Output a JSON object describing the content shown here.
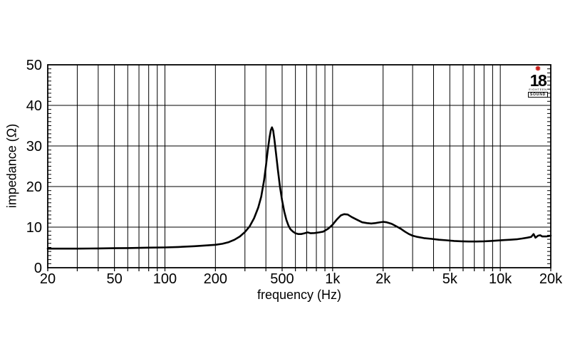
{
  "logo": {
    "star_glyph": "✹",
    "star_color": "#cc1f1a",
    "number": "18",
    "line1": "EIGHTEEN",
    "line2": "SOUND"
  },
  "chart_data": {
    "type": "line",
    "title": "",
    "xlabel": "frequency (Hz)",
    "ylabel": "impedance (Ω)",
    "x_scale": "log",
    "x_range": [
      20,
      20000
    ],
    "y_range": [
      0,
      50
    ],
    "x_ticks": [
      {
        "value": 20,
        "label": "20"
      },
      {
        "value": 50,
        "label": "50"
      },
      {
        "value": 100,
        "label": "100"
      },
      {
        "value": 200,
        "label": "200"
      },
      {
        "value": 500,
        "label": "500"
      },
      {
        "value": 1000,
        "label": "1k"
      },
      {
        "value": 2000,
        "label": "2k"
      },
      {
        "value": 5000,
        "label": "5k"
      },
      {
        "value": 10000,
        "label": "10k"
      },
      {
        "value": 20000,
        "label": "20k"
      }
    ],
    "y_ticks": [
      {
        "value": 0,
        "label": "0"
      },
      {
        "value": 10,
        "label": "10"
      },
      {
        "value": 20,
        "label": "20"
      },
      {
        "value": 30,
        "label": "30"
      },
      {
        "value": 40,
        "label": "40"
      },
      {
        "value": 50,
        "label": "50"
      }
    ],
    "y_minor_tick_step": 1,
    "grid": {
      "x_lines": "log-decade-all",
      "y_lines": "major-every-10"
    },
    "line_color": "#000000",
    "grid_color": "#000000",
    "series": [
      {
        "name": "impedance",
        "points": [
          [
            20,
            4.7
          ],
          [
            25,
            4.7
          ],
          [
            30,
            4.7
          ],
          [
            40,
            4.75
          ],
          [
            50,
            4.8
          ],
          [
            60,
            4.85
          ],
          [
            80,
            4.95
          ],
          [
            100,
            5.0
          ],
          [
            120,
            5.1
          ],
          [
            150,
            5.3
          ],
          [
            180,
            5.5
          ],
          [
            200,
            5.65
          ],
          [
            220,
            5.9
          ],
          [
            240,
            6.3
          ],
          [
            260,
            6.9
          ],
          [
            280,
            7.7
          ],
          [
            300,
            8.8
          ],
          [
            320,
            10.2
          ],
          [
            340,
            12.2
          ],
          [
            360,
            14.8
          ],
          [
            375,
            17.5
          ],
          [
            390,
            21.5
          ],
          [
            400,
            25.0
          ],
          [
            410,
            28.8
          ],
          [
            420,
            32.0
          ],
          [
            428,
            33.9
          ],
          [
            435,
            34.6
          ],
          [
            442,
            33.8
          ],
          [
            450,
            31.5
          ],
          [
            460,
            28.0
          ],
          [
            472,
            24.0
          ],
          [
            485,
            20.0
          ],
          [
            500,
            16.5
          ],
          [
            515,
            13.8
          ],
          [
            530,
            11.8
          ],
          [
            545,
            10.4
          ],
          [
            560,
            9.5
          ],
          [
            580,
            8.9
          ],
          [
            600,
            8.5
          ],
          [
            625,
            8.3
          ],
          [
            650,
            8.3
          ],
          [
            680,
            8.5
          ],
          [
            710,
            8.7
          ],
          [
            740,
            8.5
          ],
          [
            780,
            8.55
          ],
          [
            830,
            8.7
          ],
          [
            880,
            8.9
          ],
          [
            940,
            9.6
          ],
          [
            1000,
            10.6
          ],
          [
            1060,
            11.9
          ],
          [
            1120,
            12.9
          ],
          [
            1170,
            13.2
          ],
          [
            1230,
            13.1
          ],
          [
            1300,
            12.5
          ],
          [
            1400,
            11.8
          ],
          [
            1500,
            11.2
          ],
          [
            1600,
            11.0
          ],
          [
            1700,
            10.9
          ],
          [
            1800,
            11.0
          ],
          [
            1900,
            11.15
          ],
          [
            2000,
            11.3
          ],
          [
            2100,
            11.2
          ],
          [
            2250,
            10.8
          ],
          [
            2400,
            10.2
          ],
          [
            2550,
            9.6
          ],
          [
            2700,
            8.9
          ],
          [
            2850,
            8.3
          ],
          [
            3000,
            7.9
          ],
          [
            3200,
            7.6
          ],
          [
            3500,
            7.3
          ],
          [
            3900,
            7.1
          ],
          [
            4300,
            6.9
          ],
          [
            4800,
            6.75
          ],
          [
            5300,
            6.6
          ],
          [
            5900,
            6.5
          ],
          [
            6500,
            6.45
          ],
          [
            7200,
            6.45
          ],
          [
            8000,
            6.5
          ],
          [
            8800,
            6.6
          ],
          [
            9600,
            6.7
          ],
          [
            10500,
            6.8
          ],
          [
            11500,
            6.9
          ],
          [
            12500,
            7.0
          ],
          [
            13500,
            7.2
          ],
          [
            14500,
            7.4
          ],
          [
            15300,
            7.6
          ],
          [
            15800,
            8.3
          ],
          [
            16200,
            7.4
          ],
          [
            16800,
            7.9
          ],
          [
            17300,
            8.0
          ],
          [
            17800,
            7.7
          ],
          [
            18800,
            7.7
          ],
          [
            19500,
            7.8
          ],
          [
            20000,
            7.9
          ]
        ]
      }
    ]
  }
}
